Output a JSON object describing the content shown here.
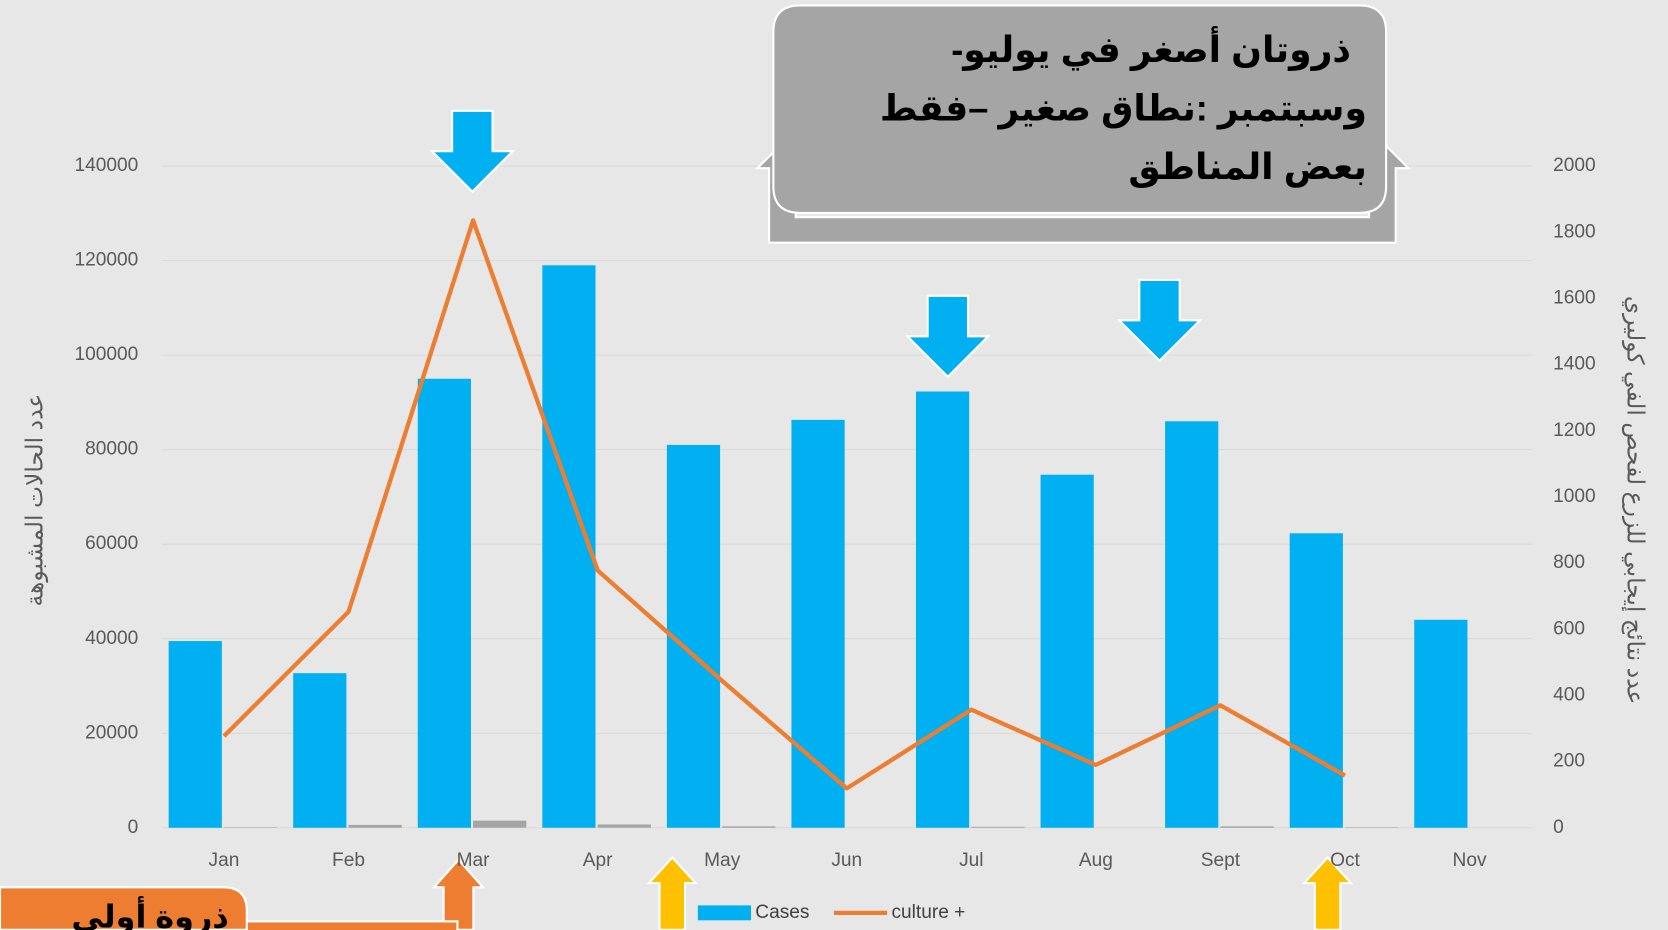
{
  "chart_data": {
    "type": "bar_line",
    "categories": [
      "Jan",
      "Feb",
      "Mar",
      "Apr",
      "May",
      "Jun",
      "Jul",
      "Aug",
      "Sept",
      "Oct",
      "Nov"
    ],
    "series": [
      {
        "name": "Cases",
        "type": "bar",
        "color": "#00b0f0",
        "values": [
          39500,
          32700,
          95000,
          119000,
          81000,
          86300,
          92300,
          74700,
          86000,
          62300,
          44000
        ]
      },
      {
        "type": "bar",
        "color": "#a5a5a5",
        "values": [
          100,
          600,
          1500,
          700,
          300,
          0,
          200,
          0,
          300,
          100,
          0
        ]
      },
      {
        "name": "culture +",
        "type": "line",
        "axis": "y2",
        "color": "#ed7d31",
        "values": [
          277,
          653,
          1836,
          778,
          444,
          119,
          357,
          190,
          370,
          158,
          null
        ]
      }
    ],
    "ylim": [
      0,
      140000
    ],
    "yticks": [
      0,
      20000,
      40000,
      60000,
      80000,
      100000,
      120000,
      140000
    ],
    "y2lim": [
      0,
      2000
    ],
    "y2ticks": [
      0,
      200,
      400,
      600,
      800,
      1000,
      1200,
      1400,
      1600,
      1800,
      2000
    ],
    "ylabel": "عدد الحالات المشبوهة",
    "y2label": "عدد نتائج إيجابي للزرع لفحص الفي كوليري",
    "grid": true,
    "legend": "bottom",
    "annotations": [
      "-ذروتان أصغر في يوليو",
      "وسبتمبر :نطاق صغير  –فقط",
      "بعض المناطق",
      "ذروة أولى"
    ]
  }
}
